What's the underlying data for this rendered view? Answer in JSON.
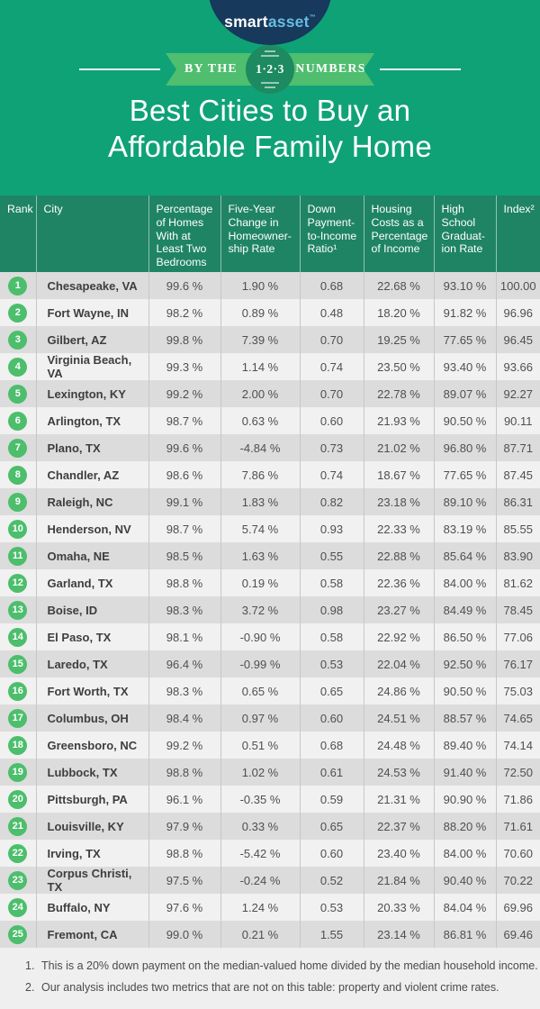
{
  "brand": {
    "smart": "smart",
    "asset": "asset",
    "tm": "™"
  },
  "banner": {
    "left_label": "BY THE",
    "right_label": "NUMBERS",
    "circle_label": "1·2·3"
  },
  "title": {
    "line1": "Best Cities to Buy an",
    "line2": "Affordable Family Home"
  },
  "chart_data": {
    "type": "table",
    "title": "Best Cities to Buy an Affordable Family Home",
    "columns": [
      {
        "label": "Rank",
        "display": "Rank"
      },
      {
        "label": "City",
        "display": "City"
      },
      {
        "label": "Percentage of Homes With at Least Two Bedrooms",
        "display": "Percentage\nof Homes\nWith at\nLeast Two\nBedrooms"
      },
      {
        "label": "Five-Year Change in Homeownership Rate",
        "display": "Five-Year\nChange in\nHomeowner-\nship Rate"
      },
      {
        "label": "Down Payment-to-Income Ratio¹",
        "display": "Down\nPayment-\nto-Income\nRatio¹"
      },
      {
        "label": "Housing Costs as a Percentage of Income",
        "display": "Housing\nCosts as a\nPercentage\nof Income"
      },
      {
        "label": "High School Graduation Rate",
        "display": "High\nSchool\nGraduat-\nion Rate"
      },
      {
        "label": "Index²",
        "display": "Index²"
      }
    ],
    "rows": [
      {
        "rank": "1",
        "city": "Chesapeake, VA",
        "pct_two_bedrooms": "99.6 %",
        "five_year_change": "1.90 %",
        "down_payment_ratio": "0.68",
        "housing_costs": "22.68 %",
        "hs_grad_rate": "93.10 %",
        "index": "100.00"
      },
      {
        "rank": "2",
        "city": "Fort Wayne, IN",
        "pct_two_bedrooms": "98.2 %",
        "five_year_change": "0.89 %",
        "down_payment_ratio": "0.48",
        "housing_costs": "18.20 %",
        "hs_grad_rate": "91.82 %",
        "index": "96.96"
      },
      {
        "rank": "3",
        "city": "Gilbert, AZ",
        "pct_two_bedrooms": "99.8 %",
        "five_year_change": "7.39 %",
        "down_payment_ratio": "0.70",
        "housing_costs": "19.25 %",
        "hs_grad_rate": "77.65 %",
        "index": "96.45"
      },
      {
        "rank": "4",
        "city": "Virginia Beach, VA",
        "pct_two_bedrooms": "99.3 %",
        "five_year_change": "1.14 %",
        "down_payment_ratio": "0.74",
        "housing_costs": "23.50 %",
        "hs_grad_rate": "93.40 %",
        "index": "93.66"
      },
      {
        "rank": "5",
        "city": "Lexington, KY",
        "pct_two_bedrooms": "99.2 %",
        "five_year_change": "2.00 %",
        "down_payment_ratio": "0.70",
        "housing_costs": "22.78 %",
        "hs_grad_rate": "89.07 %",
        "index": "92.27"
      },
      {
        "rank": "6",
        "city": "Arlington, TX",
        "pct_two_bedrooms": "98.7 %",
        "five_year_change": "0.63 %",
        "down_payment_ratio": "0.60",
        "housing_costs": "21.93 %",
        "hs_grad_rate": "90.50 %",
        "index": "90.11"
      },
      {
        "rank": "7",
        "city": "Plano, TX",
        "pct_two_bedrooms": "99.6 %",
        "five_year_change": "-4.84 %",
        "down_payment_ratio": "0.73",
        "housing_costs": "21.02 %",
        "hs_grad_rate": "96.80 %",
        "index": "87.71"
      },
      {
        "rank": "8",
        "city": "Chandler, AZ",
        "pct_two_bedrooms": "98.6 %",
        "five_year_change": "7.86 %",
        "down_payment_ratio": "0.74",
        "housing_costs": "18.67 %",
        "hs_grad_rate": "77.65 %",
        "index": "87.45"
      },
      {
        "rank": "9",
        "city": "Raleigh, NC",
        "pct_two_bedrooms": "99.1 %",
        "five_year_change": "1.83 %",
        "down_payment_ratio": "0.82",
        "housing_costs": "23.18 %",
        "hs_grad_rate": "89.10 %",
        "index": "86.31"
      },
      {
        "rank": "10",
        "city": "Henderson, NV",
        "pct_two_bedrooms": "98.7 %",
        "five_year_change": "5.74 %",
        "down_payment_ratio": "0.93",
        "housing_costs": "22.33 %",
        "hs_grad_rate": "83.19 %",
        "index": "85.55"
      },
      {
        "rank": "11",
        "city": "Omaha, NE",
        "pct_two_bedrooms": "98.5 %",
        "five_year_change": "1.63 %",
        "down_payment_ratio": "0.55",
        "housing_costs": "22.88 %",
        "hs_grad_rate": "85.64 %",
        "index": "83.90"
      },
      {
        "rank": "12",
        "city": "Garland, TX",
        "pct_two_bedrooms": "98.8 %",
        "five_year_change": "0.19 %",
        "down_payment_ratio": "0.58",
        "housing_costs": "22.36 %",
        "hs_grad_rate": "84.00 %",
        "index": "81.62"
      },
      {
        "rank": "13",
        "city": "Boise, ID",
        "pct_two_bedrooms": "98.3 %",
        "five_year_change": "3.72 %",
        "down_payment_ratio": "0.98",
        "housing_costs": "23.27 %",
        "hs_grad_rate": "84.49 %",
        "index": "78.45"
      },
      {
        "rank": "14",
        "city": "El Paso, TX",
        "pct_two_bedrooms": "98.1 %",
        "five_year_change": "-0.90 %",
        "down_payment_ratio": "0.58",
        "housing_costs": "22.92 %",
        "hs_grad_rate": "86.50 %",
        "index": "77.06"
      },
      {
        "rank": "15",
        "city": "Laredo, TX",
        "pct_two_bedrooms": "96.4 %",
        "five_year_change": "-0.99 %",
        "down_payment_ratio": "0.53",
        "housing_costs": "22.04 %",
        "hs_grad_rate": "92.50 %",
        "index": "76.17"
      },
      {
        "rank": "16",
        "city": "Fort Worth, TX",
        "pct_two_bedrooms": "98.3 %",
        "five_year_change": "0.65 %",
        "down_payment_ratio": "0.65",
        "housing_costs": "24.86 %",
        "hs_grad_rate": "90.50 %",
        "index": "75.03"
      },
      {
        "rank": "17",
        "city": "Columbus, OH",
        "pct_two_bedrooms": "98.4 %",
        "five_year_change": "0.97 %",
        "down_payment_ratio": "0.60",
        "housing_costs": "24.51 %",
        "hs_grad_rate": "88.57 %",
        "index": "74.65"
      },
      {
        "rank": "18",
        "city": "Greensboro, NC",
        "pct_two_bedrooms": "99.2 %",
        "five_year_change": "0.51 %",
        "down_payment_ratio": "0.68",
        "housing_costs": "24.48 %",
        "hs_grad_rate": "89.40 %",
        "index": "74.14"
      },
      {
        "rank": "19",
        "city": "Lubbock, TX",
        "pct_two_bedrooms": "98.8 %",
        "five_year_change": "1.02 %",
        "down_payment_ratio": "0.61",
        "housing_costs": "24.53 %",
        "hs_grad_rate": "91.40 %",
        "index": "72.50"
      },
      {
        "rank": "20",
        "city": "Pittsburgh, PA",
        "pct_two_bedrooms": "96.1 %",
        "five_year_change": "-0.35 %",
        "down_payment_ratio": "0.59",
        "housing_costs": "21.31 %",
        "hs_grad_rate": "90.90 %",
        "index": "71.86"
      },
      {
        "rank": "21",
        "city": "Louisville, KY",
        "pct_two_bedrooms": "97.9 %",
        "five_year_change": "0.33 %",
        "down_payment_ratio": "0.65",
        "housing_costs": "22.37 %",
        "hs_grad_rate": "88.20 %",
        "index": "71.61"
      },
      {
        "rank": "22",
        "city": "Irving, TX",
        "pct_two_bedrooms": "98.8 %",
        "five_year_change": "-5.42 %",
        "down_payment_ratio": "0.60",
        "housing_costs": "23.40 %",
        "hs_grad_rate": "84.00 %",
        "index": "70.60"
      },
      {
        "rank": "23",
        "city": "Corpus Christi, TX",
        "pct_two_bedrooms": "97.5 %",
        "five_year_change": "-0.24 %",
        "down_payment_ratio": "0.52",
        "housing_costs": "21.84 %",
        "hs_grad_rate": "90.40 %",
        "index": "70.22"
      },
      {
        "rank": "24",
        "city": "Buffalo, NY",
        "pct_two_bedrooms": "97.6 %",
        "five_year_change": "1.24 %",
        "down_payment_ratio": "0.53",
        "housing_costs": "20.33 %",
        "hs_grad_rate": "84.04 %",
        "index": "69.96"
      },
      {
        "rank": "25",
        "city": "Fremont, CA",
        "pct_two_bedrooms": "99.0 %",
        "five_year_change": "0.21 %",
        "down_payment_ratio": "1.55",
        "housing_costs": "23.14 %",
        "hs_grad_rate": "86.81 %",
        "index": "69.46"
      }
    ]
  },
  "footnotes": [
    {
      "num": "1.",
      "text": "This is a 20% down payment on the median-valued home divided by the median household income."
    },
    {
      "num": "2.",
      "text": "Our analysis includes two metrics that are not on this table: property and violent crime rates."
    }
  ],
  "colors": {
    "page_green": "#10A277",
    "header_green": "#1F8464",
    "ribbon_green": "#4FBE6E",
    "circle_green": "#1D8A61",
    "rank_green": "#4CBE6C",
    "navy": "#16395C",
    "logo_blue": "#69BCE1",
    "row_dark": "#DCDCDC",
    "row_light": "#F1F1F1",
    "divider": "#C7C7C7",
    "footer_bg": "#EFEFEF"
  }
}
